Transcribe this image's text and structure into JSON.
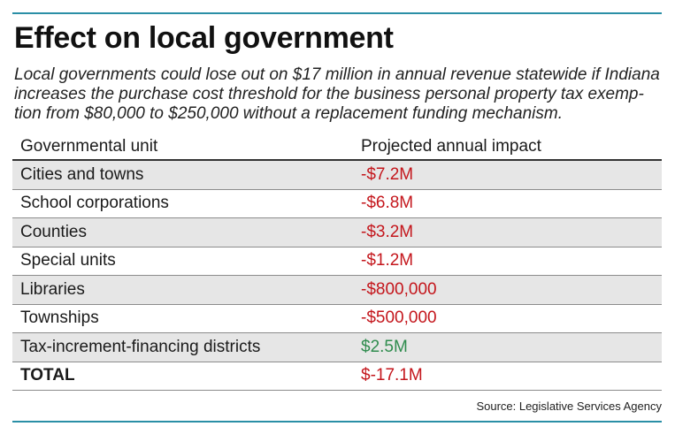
{
  "title": "Effect on local government",
  "subtitle": "Local governments could lose out on $17 million in annual revenue statewide if Indiana increases the purchase cost threshold for the business personal property tax exemp-tion from $80,000 to $250,000 without a replacement funding mechanism.",
  "table": {
    "headers": [
      "Governmental unit",
      "Projected annual impact"
    ],
    "rows": [
      {
        "unit": "Cities and towns",
        "impact": "-$7.2M",
        "sign": "negative"
      },
      {
        "unit": "School corporations",
        "impact": "-$6.8M",
        "sign": "negative"
      },
      {
        "unit": "Counties",
        "impact": "-$3.2M",
        "sign": "negative"
      },
      {
        "unit": "Special units",
        "impact": "-$1.2M",
        "sign": "negative"
      },
      {
        "unit": "Libraries",
        "impact": "-$800,000",
        "sign": "negative"
      },
      {
        "unit": "Townships",
        "impact": "-$500,000",
        "sign": "negative"
      },
      {
        "unit": "Tax-increment-financing districts",
        "impact": "$2.5M",
        "sign": "positive"
      },
      {
        "unit": "TOTAL",
        "impact": "$-17.1M",
        "sign": "negative"
      }
    ]
  },
  "source": "Source: Legislative Services Agency",
  "colors": {
    "accent_rule": "#2a8fa6",
    "negative": "#c4161c",
    "positive": "#2f8c4e",
    "shaded_row": "#e6e6e6"
  }
}
